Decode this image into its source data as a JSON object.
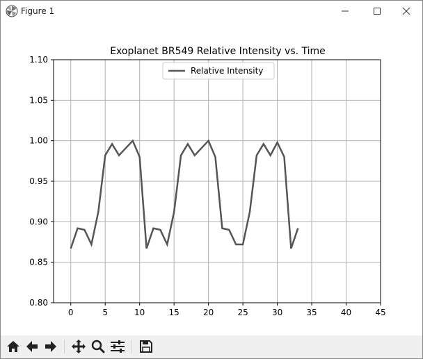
{
  "window": {
    "title": "Figure 1"
  },
  "titlebar_buttons": {
    "minimize": "minimize-icon",
    "maximize": "maximize-icon",
    "close": "close-icon"
  },
  "toolbar": {
    "buttons": [
      "home-icon",
      "back-arrow-icon",
      "forward-arrow-icon",
      "pan-icon",
      "zoom-icon",
      "configure-subplots-icon",
      "save-icon"
    ]
  },
  "chart_data": {
    "type": "line",
    "title": "Exoplanet BR549 Relative Intensity vs. Time",
    "xlabel": "",
    "ylabel": "",
    "xlim": [
      -2.5,
      45
    ],
    "ylim": [
      0.8,
      1.1
    ],
    "xticks": [
      0,
      5,
      10,
      15,
      20,
      25,
      30,
      35,
      40,
      45
    ],
    "yticks": [
      0.8,
      0.85,
      0.9,
      0.95,
      1.0,
      1.05,
      1.1
    ],
    "xtick_labels": [
      "0",
      "5",
      "10",
      "15",
      "20",
      "25",
      "30",
      "35",
      "40",
      "45"
    ],
    "ytick_labels": [
      "0.80",
      "0.85",
      "0.90",
      "0.95",
      "1.00",
      "1.05",
      "1.10"
    ],
    "grid": true,
    "legend": "upper center",
    "line_color": "#555555",
    "series": [
      {
        "name": "Relative Intensity",
        "x": [
          0,
          1,
          2,
          3,
          4,
          5,
          6,
          7,
          8,
          9,
          10,
          11,
          12,
          13,
          14,
          15,
          16,
          17,
          18,
          19,
          20,
          21,
          22,
          23,
          24,
          25,
          26,
          27,
          28,
          29,
          30,
          31,
          32,
          33
        ],
        "y": [
          0.867,
          0.892,
          0.89,
          0.872,
          0.912,
          0.982,
          0.996,
          0.982,
          0.991,
          1.0,
          0.98,
          0.867,
          0.892,
          0.89,
          0.872,
          0.912,
          0.982,
          0.996,
          0.982,
          0.991,
          1.0,
          0.98,
          0.892,
          0.89,
          0.872,
          0.872,
          0.912,
          0.982,
          0.996,
          0.982,
          0.998,
          0.98,
          0.867,
          0.892
        ]
      }
    ]
  }
}
